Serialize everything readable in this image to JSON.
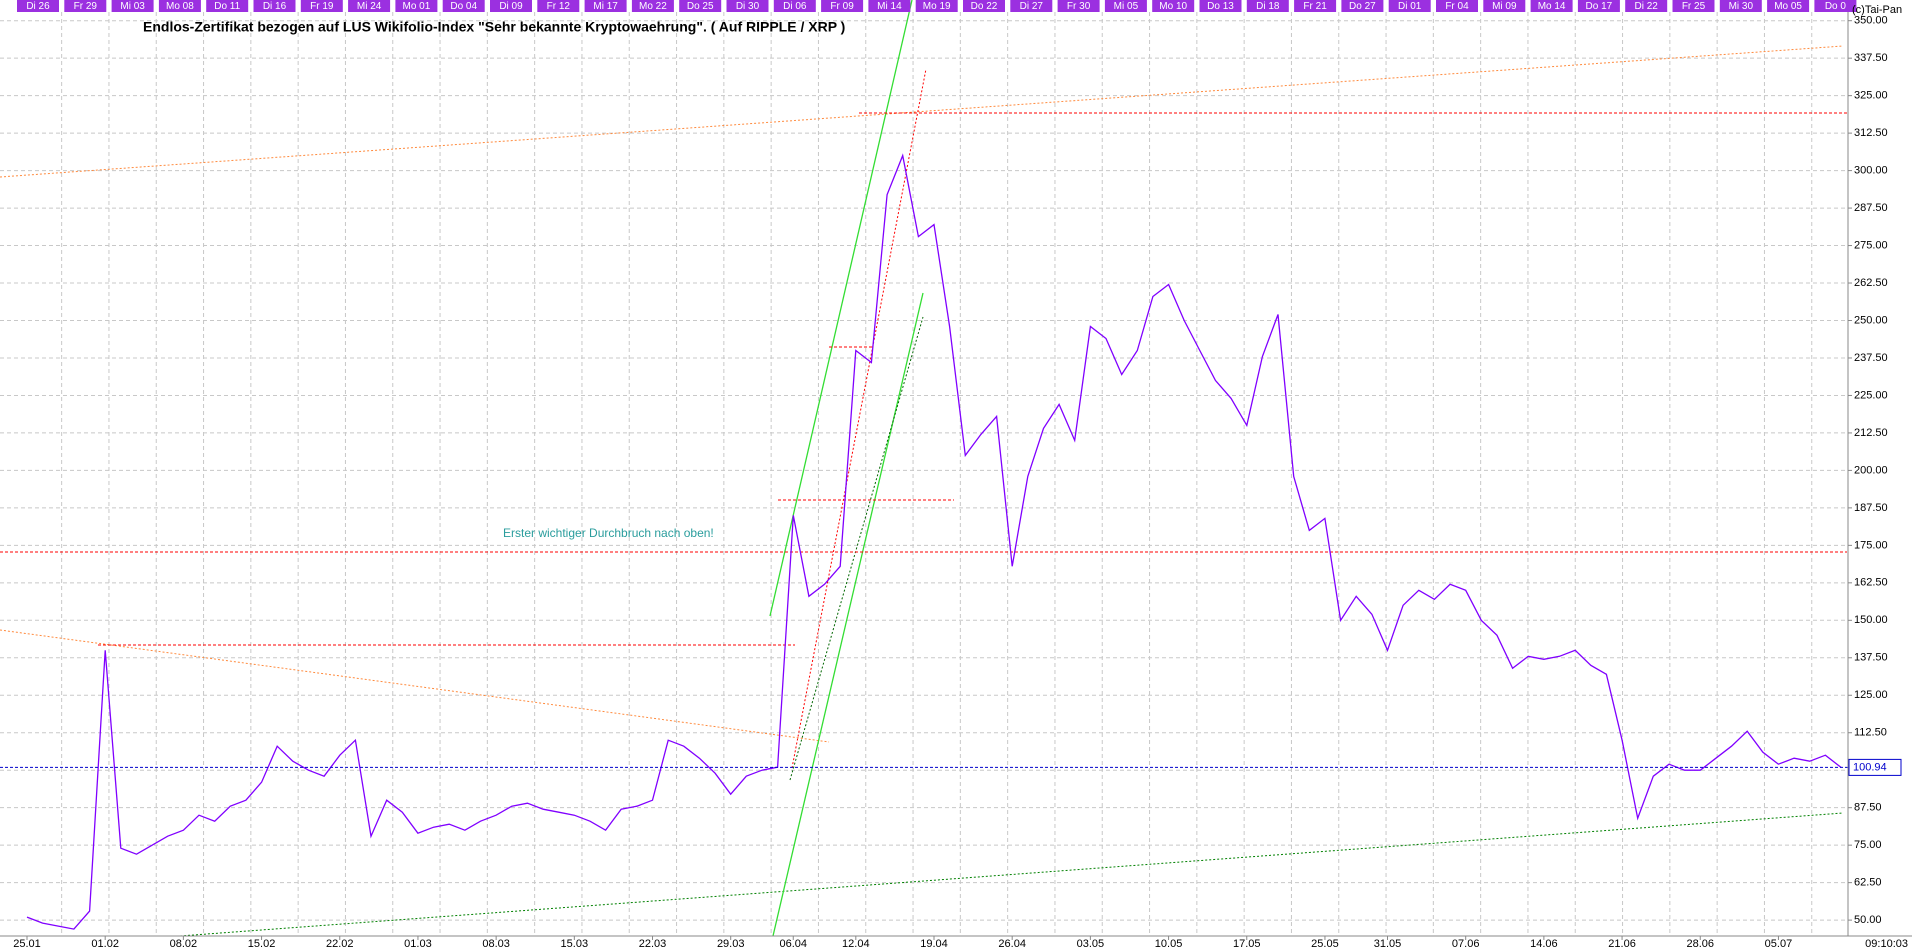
{
  "chart_data": {
    "type": "line",
    "title": "Endlos-Zertifikat bezogen auf LUS Wikifolio-Index \"Sehr bekannte Kryptowaehrung\". ( Auf RIPPLE / XRP )",
    "copyright": "(c)Tai-Pan",
    "annotation": "Erster wichtiger Durchbruch nach oben!",
    "timestamp": "09:10:03",
    "categories": [
      "25.01",
      "26.01",
      "27.01",
      "28.01",
      "29.01",
      "01.02",
      "02.02",
      "03.02",
      "04.02",
      "05.02",
      "08.02",
      "09.02",
      "10.02",
      "11.02",
      "12.02",
      "15.02",
      "16.02",
      "17.02",
      "18.02",
      "19.02",
      "22.02",
      "23.02",
      "24.02",
      "25.02",
      "26.02",
      "01.03",
      "02.03",
      "03.03",
      "04.03",
      "05.03",
      "08.03",
      "09.03",
      "10.03",
      "11.03",
      "12.03",
      "15.03",
      "16.03",
      "17.03",
      "18.03",
      "19.03",
      "22.03",
      "23.03",
      "24.03",
      "25.03",
      "26.03",
      "29.03",
      "30.03",
      "31.03",
      "01.04",
      "06.04",
      "07.04",
      "08.04",
      "09.04",
      "12.04",
      "13.04",
      "14.04",
      "15.04",
      "16.04",
      "19.04",
      "20.04",
      "21.04",
      "22.04",
      "23.04",
      "26.04",
      "27.04",
      "28.04",
      "29.04",
      "30.04",
      "03.05",
      "04.05",
      "05.05",
      "06.05",
      "07.05",
      "10.05",
      "11.05",
      "12.05",
      "13.05",
      "14.05",
      "17.05",
      "18.05",
      "19.05",
      "20.05",
      "21.05",
      "25.05",
      "26.05",
      "27.05",
      "28.05",
      "31.05",
      "01.06",
      "02.06",
      "03.06",
      "04.06",
      "07.06",
      "08.06",
      "09.06",
      "10.06",
      "11.06",
      "14.06",
      "15.06",
      "16.06",
      "17.06",
      "18.06",
      "21.06",
      "22.06",
      "23.06",
      "24.06",
      "25.06",
      "28.06",
      "29.06",
      "30.06",
      "01.07",
      "02.07",
      "05.07",
      "06.07",
      "07.07",
      "08.07",
      "09.07"
    ],
    "series": [
      {
        "name": "RIPPLE / XRP",
        "color": "#8000ff",
        "values": [
          51,
          49,
          48,
          47,
          53,
          140,
          74,
          72,
          75,
          78,
          80,
          85,
          83,
          88,
          90,
          96,
          108,
          103,
          100,
          98,
          105,
          110,
          78,
          90,
          86,
          79,
          81,
          82,
          80,
          83,
          85,
          88,
          89,
          87,
          86,
          85,
          83,
          80,
          87,
          88,
          90,
          110,
          108,
          104,
          99,
          92,
          98,
          100,
          101,
          185,
          158,
          162,
          168,
          240,
          236,
          292,
          305,
          278,
          282,
          248,
          205,
          212,
          218,
          168,
          198,
          214,
          222,
          210,
          248,
          244,
          232,
          240,
          258,
          262,
          250,
          240,
          230,
          224,
          215,
          238,
          252,
          198,
          180,
          184,
          150,
          158,
          152,
          140,
          155,
          160,
          157,
          162,
          160,
          150,
          145,
          134,
          138,
          137,
          138,
          140,
          135,
          132,
          110,
          84,
          98,
          102,
          100,
          100,
          104,
          108,
          113,
          106,
          102,
          104,
          103,
          105,
          100.94
        ],
        "last_label": "100.94"
      }
    ],
    "xticks": [
      "25.01",
      "01.02",
      "08.02",
      "15.02",
      "22.02",
      "01.03",
      "08.03",
      "15.03",
      "22.03",
      "29.03",
      "06.04",
      "12.04",
      "19.04",
      "26.04",
      "03.05",
      "10.05",
      "17.05",
      "25.05",
      "31.05",
      "07.06",
      "14.06",
      "21.06",
      "28.06",
      "05.07"
    ],
    "top_labels": [
      "Di 26",
      "Fr 29",
      "Mi 03",
      "Mo 08",
      "Do 11",
      "Di 16",
      "Fr 19",
      "Mi 24",
      "Mo 01",
      "Do 04",
      "Di 09",
      "Fr 12",
      "Mi 17",
      "Mo 22",
      "Do 25",
      "Di 30",
      "Di 06",
      "Fr 09",
      "Mi 14",
      "Mo 19",
      "Do 22",
      "Di 27",
      "Fr 30",
      "Mi 05",
      "Mo 10",
      "Do 13",
      "Di 18",
      "Fr 21",
      "Do 27",
      "Di 01",
      "Fr 04",
      "Mi 09",
      "Mo 14",
      "Do 17",
      "Di 22",
      "Fr 25",
      "Mi 30",
      "Mo 05",
      "Do 0"
    ],
    "ylim": [
      44.7,
      352.9
    ],
    "yticks": [
      {
        "value": 50,
        "label": "50.00"
      },
      {
        "value": 62.5,
        "label": "62.50"
      },
      {
        "value": 75,
        "label": "75.00"
      },
      {
        "value": 87.5,
        "label": "87.50"
      },
      {
        "value": 100,
        "label": "100.00"
      },
      {
        "value": 112.5,
        "label": "112.50"
      },
      {
        "value": 125,
        "label": "125.00"
      },
      {
        "value": 137.5,
        "label": "137.50"
      },
      {
        "value": 150,
        "label": "150.00"
      },
      {
        "value": 162.5,
        "label": "162.50"
      },
      {
        "value": 175,
        "label": "175.00"
      },
      {
        "value": 187.5,
        "label": "187.50"
      },
      {
        "value": 200,
        "label": "200.00"
      },
      {
        "value": 212.5,
        "label": "212.50"
      },
      {
        "value": 225,
        "label": "225.00"
      },
      {
        "value": 237.5,
        "label": "237.50"
      },
      {
        "value": 250,
        "label": "250.00"
      },
      {
        "value": 262.5,
        "label": "262.50"
      },
      {
        "value": 275,
        "label": "275.00"
      },
      {
        "value": 287.5,
        "label": "287.50"
      },
      {
        "value": 300,
        "label": "300.00"
      },
      {
        "value": 312.5,
        "label": "312.50"
      },
      {
        "value": 325,
        "label": "325.00"
      },
      {
        "value": 337.5,
        "label": "337.50"
      },
      {
        "value": 350,
        "label": "350.00"
      }
    ],
    "grid": true
  }
}
